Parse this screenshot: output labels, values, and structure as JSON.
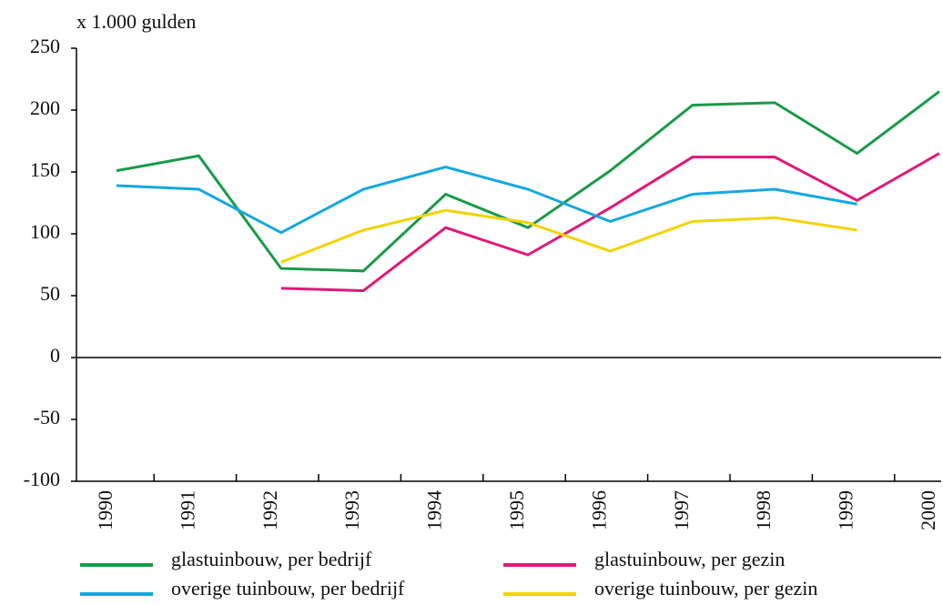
{
  "chart_data": {
    "type": "line",
    "y_axis_label": "x 1.000 gulden",
    "categories": [
      "1990",
      "1991",
      "1992",
      "1993",
      "1994",
      "1995",
      "1996",
      "1997",
      "1998",
      "1999",
      "2000"
    ],
    "series": [
      {
        "name": "glastuinbouw, per bedrijf",
        "color": "#1a9a48",
        "values": [
          151,
          163,
          72,
          70,
          132,
          105,
          151,
          204,
          206,
          165,
          215
        ]
      },
      {
        "name": "glastuinbouw, per gezin",
        "color": "#e0197a",
        "values": [
          null,
          null,
          56,
          54,
          105,
          83,
          121,
          162,
          162,
          127,
          165
        ]
      },
      {
        "name": "overige tuinbouw, per bedrijf",
        "color": "#14a8e0",
        "values": [
          139,
          136,
          101,
          136,
          154,
          136,
          110,
          132,
          136,
          124,
          null
        ]
      },
      {
        "name": "overige tuinbouw, per gezin",
        "color": "#f2d400",
        "values": [
          null,
          null,
          77,
          103,
          119,
          109,
          86,
          110,
          113,
          103,
          null
        ]
      }
    ],
    "ylim": [
      -100,
      250
    ],
    "yticks": [
      -100,
      -50,
      0,
      50,
      100,
      150,
      200,
      250
    ]
  }
}
